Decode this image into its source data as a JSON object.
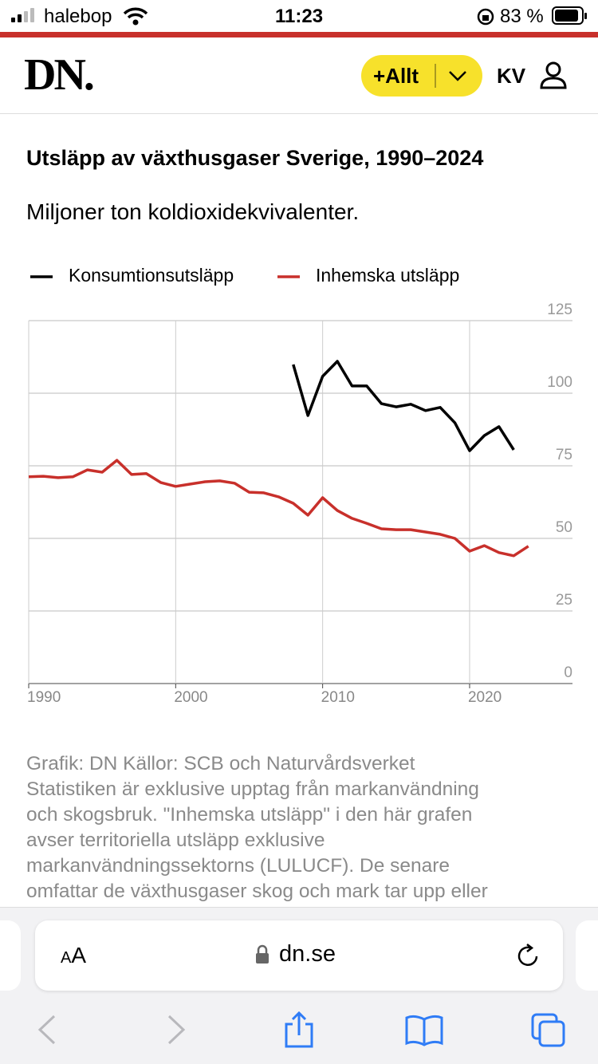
{
  "status_bar": {
    "carrier": "halebop",
    "time": "11:23",
    "battery": "83 %"
  },
  "header": {
    "logo": "DN.",
    "menu_button": "+Allt",
    "initials": "KV"
  },
  "chart_data": {
    "type": "line",
    "title": "Utsläpp av växthusgaser Sverige, 1990–2024",
    "subtitle": "Miljoner ton koldioxidekvivalenter.",
    "x": [
      1990,
      1991,
      1992,
      1993,
      1994,
      1995,
      1996,
      1997,
      1998,
      1999,
      2000,
      2001,
      2002,
      2003,
      2004,
      2005,
      2006,
      2007,
      2008,
      2009,
      2010,
      2011,
      2012,
      2013,
      2014,
      2015,
      2016,
      2017,
      2018,
      2019,
      2020,
      2021,
      2022,
      2023,
      2024
    ],
    "series": [
      {
        "name": "Konsumtionsutsläpp",
        "color": "#000000",
        "values": [
          null,
          null,
          null,
          null,
          null,
          null,
          null,
          null,
          null,
          null,
          null,
          null,
          null,
          null,
          null,
          null,
          null,
          null,
          109.9,
          92.3,
          105.8,
          111.0,
          102.5,
          102.5,
          96.4,
          95.3,
          96.2,
          94.0,
          95.1,
          89.8,
          80.2,
          85.4,
          88.5,
          80.5,
          null
        ]
      },
      {
        "name": "Inhemska utsläpp",
        "color": "#c8302b",
        "values": [
          71.2,
          71.4,
          70.9,
          71.2,
          73.6,
          72.8,
          76.9,
          72.0,
          72.3,
          69.2,
          67.9,
          68.7,
          69.5,
          69.8,
          69.0,
          65.9,
          65.7,
          64.3,
          62.1,
          58.0,
          64.0,
          59.6,
          56.9,
          55.2,
          53.3,
          53.0,
          53.0,
          52.2,
          51.4,
          50.0,
          45.6,
          47.5,
          45.1,
          44.0,
          47.3
        ]
      }
    ],
    "xlim": [
      1990,
      2027
    ],
    "xticks": [
      1990,
      2000,
      2010,
      2020
    ],
    "ylim": [
      0,
      125
    ],
    "yticks": [
      0,
      25,
      50,
      75,
      100,
      125
    ],
    "grid": true,
    "legend": "top"
  },
  "source_text": [
    "Grafik: DN Källor: SCB och Naturvårdsverket",
    "Statistiken är exklusive upptag från markanvändning",
    "och skogsbruk. \"Inhemska utsläpp\" i den här grafen",
    "avser territoriella utsläpp exklusive",
    "markanvändningssektorns (LULUCF). De senare",
    "omfattar de växthusgaser skog och mark tar upp eller"
  ],
  "browser": {
    "text_size_small": "A",
    "text_size_large": "A",
    "url": "dn.se"
  }
}
